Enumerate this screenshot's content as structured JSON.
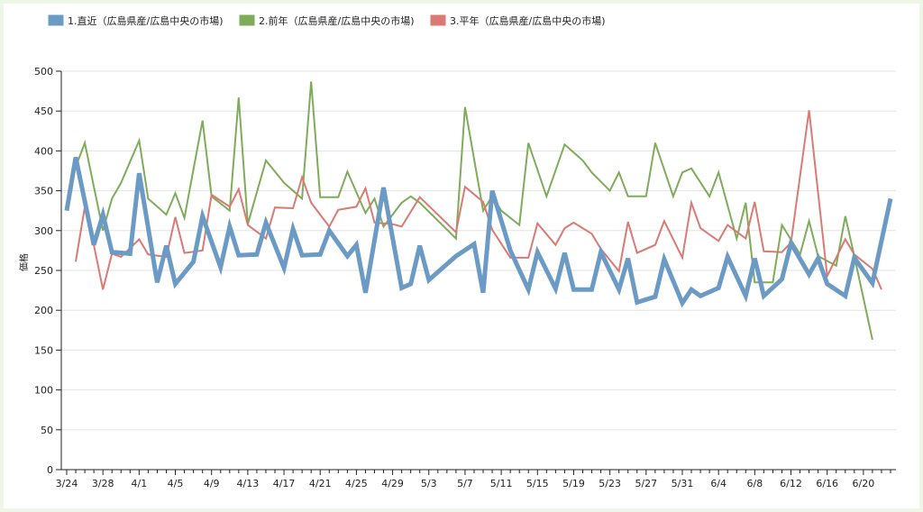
{
  "chart_data": {
    "type": "line",
    "ylabel": "価格",
    "ylim": [
      0,
      500
    ],
    "y_ticks": [
      0,
      50,
      100,
      150,
      200,
      250,
      300,
      350,
      400,
      450,
      500
    ],
    "grid": "horizontal",
    "legend_position": "top-left",
    "x_labels": [
      "3/24",
      "3/28",
      "4/1",
      "4/5",
      "4/9",
      "4/13",
      "4/17",
      "4/21",
      "4/25",
      "4/29",
      "5/3",
      "5/7",
      "5/11",
      "5/15",
      "5/19",
      "5/23",
      "5/27",
      "5/31",
      "6/4",
      "6/8",
      "6/12",
      "6/16",
      "6/20"
    ],
    "series": [
      {
        "name": "1.直近（広島県産/広島中央の市場)",
        "color": "#6b9ac4",
        "width": 5,
        "points": [
          [
            0,
            325
          ],
          [
            1,
            392
          ],
          [
            3,
            282
          ],
          [
            4,
            320
          ],
          [
            5,
            273
          ],
          [
            7,
            271
          ],
          [
            8,
            372
          ],
          [
            10,
            235
          ],
          [
            11,
            281
          ],
          [
            12,
            233
          ],
          [
            14,
            261
          ],
          [
            15,
            318
          ],
          [
            17,
            254
          ],
          [
            18,
            305
          ],
          [
            19,
            269
          ],
          [
            21,
            270
          ],
          [
            22,
            310
          ],
          [
            24,
            253
          ],
          [
            25,
            302
          ],
          [
            26,
            269
          ],
          [
            28,
            270
          ],
          [
            29,
            300
          ],
          [
            31,
            268
          ],
          [
            32,
            282
          ],
          [
            33,
            222
          ],
          [
            35,
            354
          ],
          [
            37,
            228
          ],
          [
            38,
            233
          ],
          [
            39,
            281
          ],
          [
            40,
            238
          ],
          [
            43,
            268
          ],
          [
            45,
            283
          ],
          [
            46,
            222
          ],
          [
            47,
            350
          ],
          [
            49,
            275
          ],
          [
            51,
            226
          ],
          [
            52,
            273
          ],
          [
            54,
            227
          ],
          [
            55,
            272
          ],
          [
            56,
            226
          ],
          [
            58,
            226
          ],
          [
            59,
            273
          ],
          [
            61,
            226
          ],
          [
            62,
            265
          ],
          [
            63,
            210
          ],
          [
            65,
            217
          ],
          [
            66,
            264
          ],
          [
            68,
            209
          ],
          [
            69,
            226
          ],
          [
            70,
            218
          ],
          [
            72,
            228
          ],
          [
            73,
            267
          ],
          [
            75,
            218
          ],
          [
            76,
            265
          ],
          [
            77,
            218
          ],
          [
            79,
            239
          ],
          [
            80,
            284
          ],
          [
            82,
            245
          ],
          [
            83,
            265
          ],
          [
            84,
            233
          ],
          [
            86,
            218
          ],
          [
            87,
            266
          ],
          [
            89,
            234
          ],
          [
            91,
            340
          ]
        ]
      },
      {
        "name": "2.前年（広島県産/広島中央の市場)",
        "color": "#7fac5a",
        "width": 2,
        "points": [
          [
            1,
            380
          ],
          [
            2,
            410
          ],
          [
            4,
            300
          ],
          [
            5,
            340
          ],
          [
            6,
            360
          ],
          [
            8,
            413
          ],
          [
            9,
            340
          ],
          [
            11,
            320
          ],
          [
            12,
            347
          ],
          [
            13,
            316
          ],
          [
            15,
            438
          ],
          [
            16,
            343
          ],
          [
            18,
            325
          ],
          [
            19,
            467
          ],
          [
            20,
            308
          ],
          [
            22,
            388
          ],
          [
            24,
            360
          ],
          [
            26,
            340
          ],
          [
            27,
            487
          ],
          [
            28,
            342
          ],
          [
            30,
            342
          ],
          [
            31,
            374
          ],
          [
            33,
            322
          ],
          [
            34,
            340
          ],
          [
            35,
            305
          ],
          [
            37,
            335
          ],
          [
            38,
            343
          ],
          [
            39,
            335
          ],
          [
            43,
            290
          ],
          [
            44,
            455
          ],
          [
            46,
            325
          ],
          [
            47,
            343
          ],
          [
            48,
            325
          ],
          [
            50,
            307
          ],
          [
            51,
            410
          ],
          [
            53,
            343
          ],
          [
            55,
            408
          ],
          [
            57,
            388
          ],
          [
            58,
            373
          ],
          [
            60,
            350
          ],
          [
            61,
            373
          ],
          [
            62,
            343
          ],
          [
            64,
            343
          ],
          [
            65,
            410
          ],
          [
            67,
            343
          ],
          [
            68,
            373
          ],
          [
            69,
            378
          ],
          [
            71,
            343
          ],
          [
            72,
            373
          ],
          [
            74,
            290
          ],
          [
            75,
            335
          ],
          [
            76,
            235
          ],
          [
            78,
            235
          ],
          [
            79,
            307
          ],
          [
            81,
            270
          ],
          [
            82,
            312
          ],
          [
            83,
            268
          ],
          [
            85,
            256
          ],
          [
            86,
            318
          ],
          [
            87,
            268
          ],
          [
            89,
            163
          ]
        ]
      },
      {
        "name": "3.平年（広島県産/広島中央の市場)",
        "color": "#d97a74",
        "width": 2,
        "points": [
          [
            1,
            261
          ],
          [
            2,
            330
          ],
          [
            3,
            282
          ],
          [
            4,
            226
          ],
          [
            5,
            271
          ],
          [
            6,
            267
          ],
          [
            8,
            289
          ],
          [
            9,
            270
          ],
          [
            11,
            267
          ],
          [
            12,
            317
          ],
          [
            13,
            272
          ],
          [
            15,
            275
          ],
          [
            16,
            345
          ],
          [
            18,
            330
          ],
          [
            19,
            352
          ],
          [
            20,
            307
          ],
          [
            22,
            290
          ],
          [
            23,
            329
          ],
          [
            25,
            328
          ],
          [
            26,
            367
          ],
          [
            27,
            335
          ],
          [
            29,
            305
          ],
          [
            30,
            326
          ],
          [
            32,
            330
          ],
          [
            33,
            353
          ],
          [
            34,
            310
          ],
          [
            36,
            308
          ],
          [
            37,
            305
          ],
          [
            39,
            342
          ],
          [
            43,
            298
          ],
          [
            44,
            355
          ],
          [
            46,
            336
          ],
          [
            47,
            301
          ],
          [
            49,
            266
          ],
          [
            51,
            266
          ],
          [
            52,
            309
          ],
          [
            54,
            282
          ],
          [
            55,
            303
          ],
          [
            56,
            310
          ],
          [
            58,
            296
          ],
          [
            59,
            277
          ],
          [
            61,
            249
          ],
          [
            62,
            311
          ],
          [
            63,
            272
          ],
          [
            65,
            282
          ],
          [
            66,
            312
          ],
          [
            68,
            266
          ],
          [
            69,
            335
          ],
          [
            70,
            303
          ],
          [
            72,
            287
          ],
          [
            73,
            307
          ],
          [
            75,
            290
          ],
          [
            76,
            336
          ],
          [
            77,
            274
          ],
          [
            79,
            273
          ],
          [
            80,
            285
          ],
          [
            82,
            451
          ],
          [
            84,
            243
          ],
          [
            86,
            289
          ],
          [
            87,
            270
          ],
          [
            89,
            252
          ],
          [
            90,
            226
          ]
        ]
      }
    ]
  }
}
